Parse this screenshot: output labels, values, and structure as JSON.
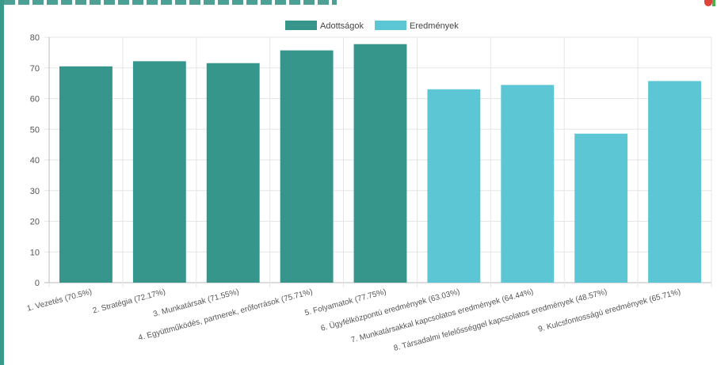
{
  "colors": {
    "adottsagok": "#37968b",
    "eredmenyek": "#5cc6d4",
    "grid": "#e6e6e6",
    "axis": "#bbbbbb"
  },
  "chart_data": {
    "type": "bar",
    "ylim": [
      0,
      80
    ],
    "yticks": [
      0,
      10,
      20,
      30,
      40,
      50,
      60,
      70,
      80
    ],
    "grid": true,
    "legend_position": "top-center",
    "series": [
      {
        "name": "Adottságok",
        "color": "#37968b"
      },
      {
        "name": "Eredmények",
        "color": "#5cc6d4"
      }
    ],
    "categories": [
      "1. Vezetés (70.5%)",
      "2. Stratégia (72.17%)",
      "3. Munkatársak (71.55%)",
      "4. Együttműködés, partnerek, erőforrások (75.71%)",
      "5. Folyamatok (77.75%)",
      "6. Ügyfélközpontú eredmények (63.03%)",
      "7. Munkatársakkal kapcsolatos eredmények (64.44%)",
      "8. Társadalmi felelősséggel kapcsolatos eredmények (48.57%)",
      "9. Kulcsfontosságú eredmények (65.71%)"
    ],
    "values": [
      70.5,
      72.17,
      71.55,
      75.71,
      77.75,
      63.03,
      64.44,
      48.57,
      65.71
    ],
    "series_index": [
      0,
      0,
      0,
      0,
      0,
      1,
      1,
      1,
      1
    ]
  }
}
